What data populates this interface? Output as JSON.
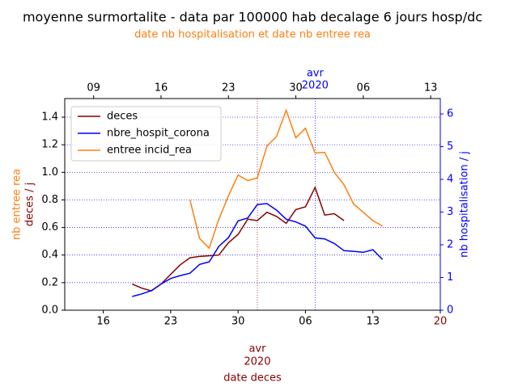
{
  "chart_data": {
    "type": "line",
    "title": "moyenne surmortalite - data par 100000 hab decalage 6 jours hosp/dc",
    "subtitle": "date nb hospitalisation et date nb entree rea",
    "y_label_rea": "nb entree rea",
    "y_label_deces": "deces / j",
    "y2_label": "nb hospitalisation / j",
    "x_label": "date deces",
    "x_month_mark": {
      "value": "2020-04-01",
      "month": "avr",
      "year": "2020"
    },
    "x2_month_mark": {
      "value": "2020-04-01",
      "month": "avr",
      "year": "2020"
    },
    "xlim": [
      "2020-03-12",
      "2020-04-20"
    ],
    "xticks": [
      {
        "value": "2020-03-16",
        "label": "16"
      },
      {
        "value": "2020-03-23",
        "label": "23"
      },
      {
        "value": "2020-03-30",
        "label": "30"
      },
      {
        "value": "2020-04-06",
        "label": "06"
      },
      {
        "value": "2020-04-13",
        "label": "13"
      },
      {
        "value": "2020-04-20",
        "label": "20"
      }
    ],
    "x2lim": [
      "2020-03-06",
      "2020-04-14"
    ],
    "x2ticks": [
      {
        "value": "2020-03-09",
        "label": "09"
      },
      {
        "value": "2020-03-16",
        "label": "16"
      },
      {
        "value": "2020-03-23",
        "label": "23"
      },
      {
        "value": "2020-03-30",
        "label": "30"
      },
      {
        "value": "2020-04-06",
        "label": "06"
      },
      {
        "value": "2020-04-13",
        "label": "13"
      }
    ],
    "ylim": [
      0,
      1.535
    ],
    "yticks": [
      {
        "value": 0,
        "label": "0.0"
      },
      0.2,
      0.4,
      0.6,
      0.8,
      {
        "value": 1,
        "label": "1.0"
      },
      1.2,
      1.4
    ],
    "y2lim": [
      0,
      6.47
    ],
    "y2ticks": [
      0,
      1,
      2,
      3,
      4,
      5,
      6
    ],
    "grid": true,
    "legend": "upper left",
    "x": [
      "2020-03-19",
      "2020-03-20",
      "2020-03-21",
      "2020-03-22",
      "2020-03-23",
      "2020-03-24",
      "2020-03-25",
      "2020-03-26",
      "2020-03-27",
      "2020-03-28",
      "2020-03-29",
      "2020-03-30",
      "2020-03-31",
      "2020-04-01",
      "2020-04-02",
      "2020-04-03",
      "2020-04-04",
      "2020-04-05",
      "2020-04-06",
      "2020-04-07",
      "2020-04-08",
      "2020-04-09",
      "2020-04-10",
      "2020-04-11",
      "2020-04-12",
      "2020-04-13",
      "2020-04-14"
    ],
    "series": [
      {
        "name": "deces",
        "color": "#8b0000",
        "values": [
          0.19,
          0.16,
          0.14,
          0.19,
          0.26,
          0.33,
          0.38,
          0.39,
          0.395,
          0.4,
          0.49,
          0.55,
          0.66,
          0.65,
          0.71,
          0.68,
          0.63,
          0.73,
          0.75,
          0.89,
          0.69,
          0.7,
          0.65,
          null,
          null,
          null,
          null
        ]
      },
      {
        "name": "nbre_hospit_corona",
        "color": "#0000ff",
        "axis": "y2",
        "values": [
          0.42,
          0.5,
          0.6,
          0.8,
          0.97,
          1.06,
          1.13,
          1.4,
          1.48,
          1.95,
          2.22,
          2.73,
          2.82,
          3.23,
          3.26,
          3.06,
          2.78,
          2.7,
          2.57,
          2.21,
          2.18,
          2.04,
          1.82,
          1.8,
          1.77,
          1.85,
          1.55
        ]
      },
      {
        "name": "entree incid_rea",
        "color": "#ff7f0e",
        "values": [
          null,
          null,
          null,
          null,
          null,
          null,
          0.8,
          0.52,
          0.45,
          0.66,
          0.83,
          0.98,
          0.94,
          0.96,
          1.19,
          1.26,
          1.45,
          1.25,
          1.32,
          1.14,
          1.145,
          1.0,
          0.91,
          0.77,
          0.71,
          0.65,
          0.61
        ]
      }
    ]
  }
}
